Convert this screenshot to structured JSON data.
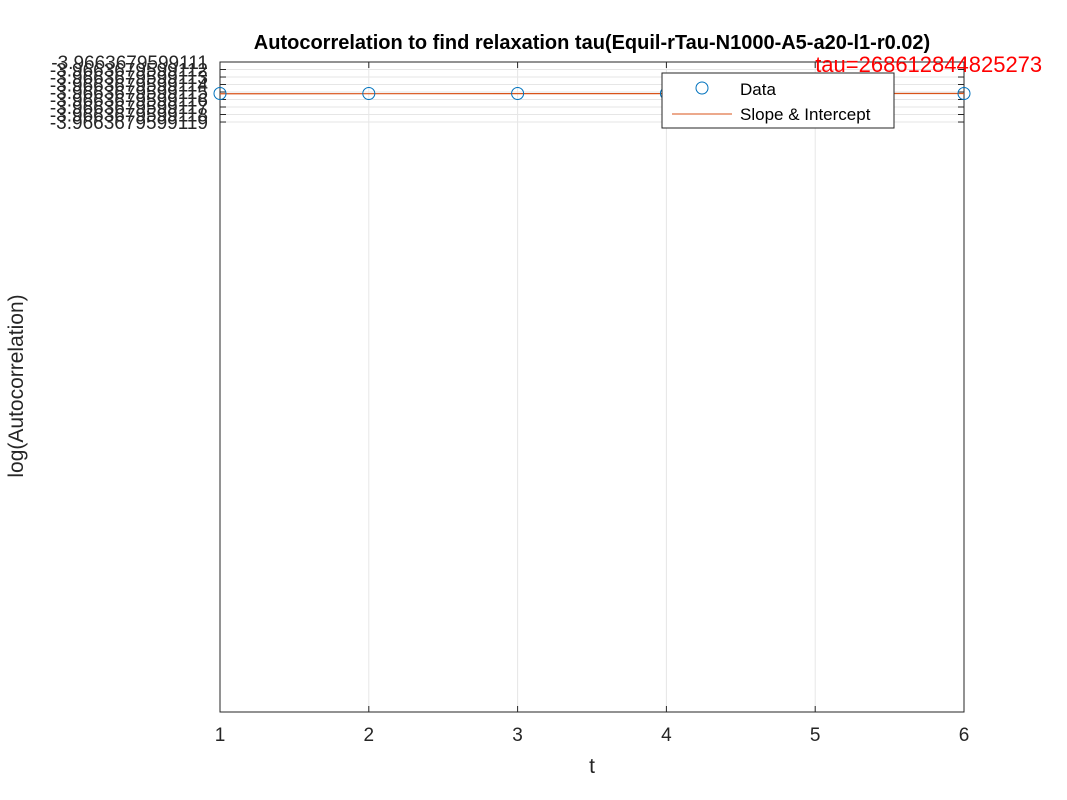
{
  "chart_data": {
    "type": "scatter",
    "title": "Autocorrelation to find relaxation tau(Equil-rTau-N1000-A5-a20-l1-r0.02)",
    "xlabel": "t",
    "ylabel": "log(Autocorrelation)",
    "xlim": [
      1,
      6
    ],
    "ylim": [
      -3.96636795991196,
      -3.9663679599111
    ],
    "x_ticks": [
      1,
      2,
      3,
      4,
      5,
      6
    ],
    "x_tick_labels": [
      "1",
      "2",
      "3",
      "4",
      "5",
      "6"
    ],
    "y_ticks": [
      -3.9663679599111,
      -3.9663679599112,
      -3.9663679599113,
      -3.9663679599114,
      -3.9663679599115,
      -3.9663679599116,
      -3.9663679599117,
      -3.9663679599118,
      -3.9663679599119
    ],
    "y_tick_labels": [
      "-3.9663679599111",
      "-3.9663679599112",
      "-3.9663679599113",
      "-3.9663679599114",
      "-3.9663679599115",
      "-3.9663679599116",
      "-3.9663679599117",
      "-3.9663679599118",
      "-3.9663679599119"
    ],
    "grid": true,
    "legend_position": "top-right",
    "series": [
      {
        "name": "Data",
        "kind": "markers",
        "marker": "circle",
        "color": "#0072BD",
        "x": [
          1,
          2,
          3,
          4,
          5,
          6
        ],
        "y": [
          -3.96636795991152,
          -3.96636795991152,
          -3.96636795991152,
          -3.96636795991152,
          -3.96636795991152,
          -3.96636795991152
        ]
      },
      {
        "name": "Slope & Intercept",
        "kind": "line",
        "color": "#D95319",
        "x": [
          1,
          6
        ],
        "y": [
          -3.966367959911523,
          -3.96636795991152
        ]
      }
    ],
    "annotations": [
      {
        "text": "tau=268612844825273",
        "x": 5,
        "y": -3.966367959911126,
        "color": "#FF0000"
      }
    ]
  }
}
